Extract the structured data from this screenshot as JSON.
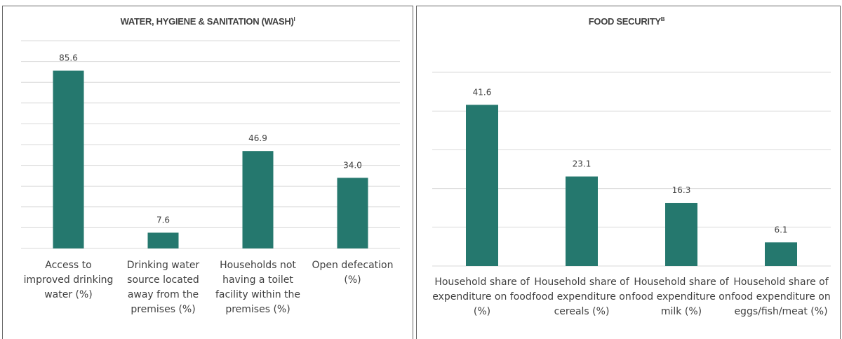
{
  "chart_data": [
    {
      "type": "bar",
      "title": "WATER, HYGIENE & SANITATION (WASH)",
      "title_sup": "I",
      "categories": [
        "Access to improved drinking water (%)",
        "Drinking water source located away from the premises (%)",
        "Households not having a toilet facility within the premises (%)",
        "Open defecation (%)"
      ],
      "values": [
        85.6,
        7.6,
        46.9,
        34.0
      ],
      "value_labels": [
        "85.6",
        "7.6",
        "46.9",
        "34.0"
      ],
      "color": "#25786e",
      "ylim": [
        0,
        100
      ],
      "yticks": [
        0,
        10,
        20,
        30,
        40,
        50,
        60,
        70,
        80,
        90,
        100
      ],
      "grid": true
    },
    {
      "type": "bar",
      "title": "FOOD SECURITY",
      "title_sup": "B",
      "categories": [
        "Household share of expenditure on food (%)",
        "Household share of food expenditure on cereals (%)",
        "Household share of food expenditure on milk (%)",
        "Household share of food expenditure on eggs/fish/meat (%)"
      ],
      "values": [
        41.6,
        23.1,
        16.3,
        6.1
      ],
      "value_labels": [
        "41.6",
        "23.1",
        "16.3",
        "6.1"
      ],
      "color": "#25786e",
      "ylim": [
        0,
        50
      ],
      "yticks": [
        0,
        10,
        20,
        30,
        40,
        50
      ],
      "grid": true
    }
  ]
}
